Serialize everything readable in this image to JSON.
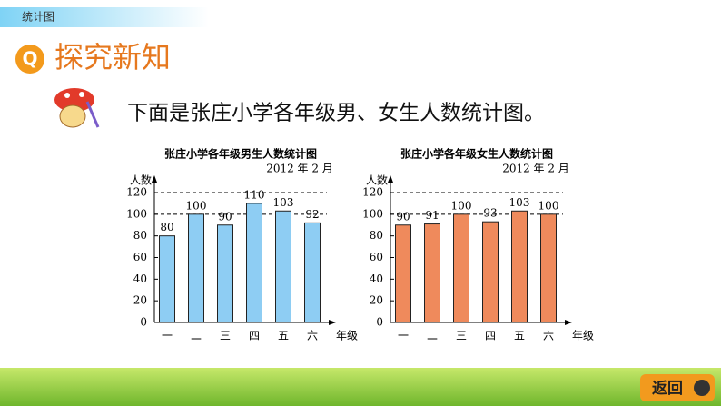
{
  "header": {
    "tab": "统计图",
    "title": "探究新知"
  },
  "intro": "下面是张庄小学各年级男、女生人数统计图。",
  "chart_data": [
    {
      "type": "bar",
      "title": "张庄小学各年级男生人数统计图",
      "subtitle": "2012 年 2 月",
      "ylabel": "人数",
      "xlabel": "年级",
      "categories": [
        "一",
        "二",
        "三",
        "四",
        "五",
        "六"
      ],
      "values": [
        80,
        100,
        90,
        110,
        103,
        92
      ],
      "color": "#8ecdf3",
      "ylim": [
        0,
        120
      ],
      "yticks": [
        0,
        20,
        40,
        60,
        80,
        100,
        120
      ],
      "gridlines": [
        100,
        120
      ]
    },
    {
      "type": "bar",
      "title": "张庄小学各年级女生人数统计图",
      "subtitle": "2012 年 2 月",
      "ylabel": "人数",
      "xlabel": "年级",
      "categories": [
        "一",
        "二",
        "三",
        "四",
        "五",
        "六"
      ],
      "values": [
        90,
        91,
        100,
        93,
        103,
        100
      ],
      "color": "#ef8a5c",
      "ylim": [
        0,
        120
      ],
      "yticks": [
        0,
        20,
        40,
        60,
        80,
        100,
        120
      ],
      "gridlines": [
        100,
        120
      ]
    }
  ],
  "footer": {
    "back": "返回"
  }
}
